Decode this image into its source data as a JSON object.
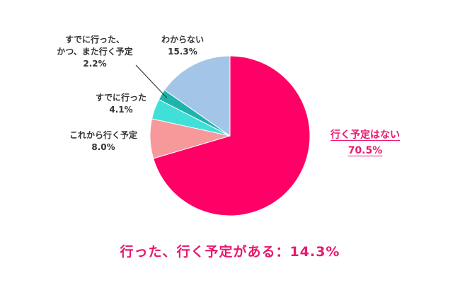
{
  "chart_data": {
    "type": "pie",
    "slices": [
      {
        "label": "行く予定はない",
        "value": 70.5,
        "value_label": "70.5%",
        "color": "#ff0066"
      },
      {
        "label": "これから行く予定",
        "value": 8.0,
        "value_label": "8.0%",
        "color": "#f7989b"
      },
      {
        "label": "すでに行った",
        "value": 4.1,
        "value_label": "4.1%",
        "color": "#40e0d9"
      },
      {
        "label_lines": [
          "すでに行った、",
          "かつ、また行く予定"
        ],
        "value": 2.2,
        "value_label": "2.2%",
        "color": "#1eb4ad"
      },
      {
        "label": "わからない",
        "value": 15.3,
        "value_label": "15.3%",
        "color": "#a3c6e8"
      }
    ],
    "start_angle_deg": 0,
    "direction": "clockwise",
    "legend": "none",
    "annotation": "行った、行く予定がある：14.3%"
  },
  "colors": {
    "accent": "#e8186e",
    "label_text": "#333333"
  }
}
